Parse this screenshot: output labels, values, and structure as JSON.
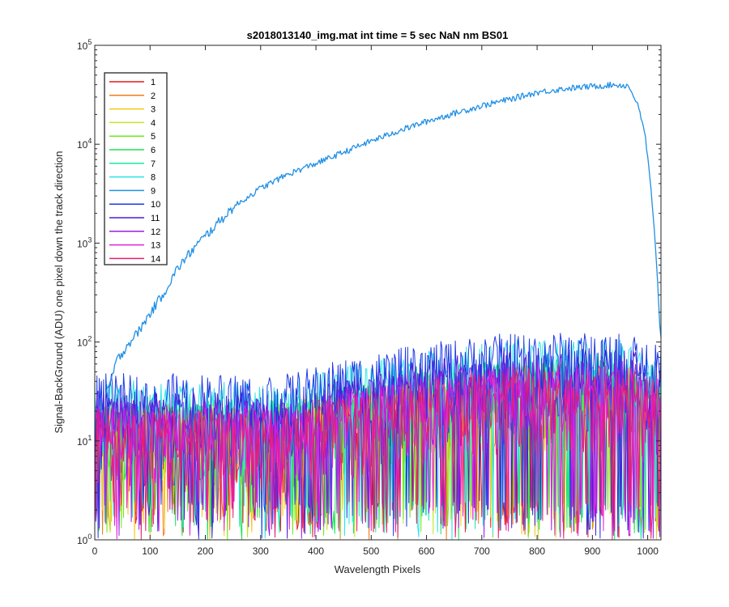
{
  "chart_data": {
    "type": "line",
    "title": "s2018013140_img.mat int time = 5 sec  NaN nm BS01",
    "xlabel": "Wavelength Pixels",
    "ylabel": "Signal-BackGround (ADU) one pixel down the track direction",
    "xlim": [
      0,
      1024
    ],
    "ylim": [
      1,
      100000
    ],
    "yscale": "log",
    "grid": false,
    "legend_position": "top-left",
    "x_ticks": [
      "0",
      "100",
      "200",
      "300",
      "400",
      "500",
      "600",
      "700",
      "800",
      "900",
      "1000"
    ],
    "y_tick_exponents": [
      "0",
      "1",
      "2",
      "3",
      "4",
      "5"
    ],
    "series": [
      {
        "name": "1",
        "color": "#e6191b",
        "level": 12
      },
      {
        "name": "2",
        "color": "#f57a1a",
        "level": 12
      },
      {
        "name": "3",
        "color": "#f5c814",
        "level": 12
      },
      {
        "name": "4",
        "color": "#c3e627",
        "level": 13
      },
      {
        "name": "5",
        "color": "#6bea1b",
        "level": 13
      },
      {
        "name": "6",
        "color": "#1fe35a",
        "level": 14
      },
      {
        "name": "7",
        "color": "#19e8a6",
        "level": 16
      },
      {
        "name": "8",
        "color": "#2be6e6",
        "level": 22
      },
      {
        "name": "9",
        "color": "#1f8fe6",
        "level": 0,
        "profile_x": [
          20,
          40,
          60,
          80,
          100,
          130,
          150,
          180,
          200,
          250,
          300,
          350,
          400,
          450,
          500,
          550,
          600,
          650,
          700,
          750,
          800,
          850,
          900,
          940,
          965,
          980,
          995,
          1005,
          1012,
          1018,
          1022,
          1024
        ],
        "profile_y": [
          28,
          65,
          95,
          130,
          195,
          350,
          560,
          900,
          1180,
          2300,
          3600,
          5000,
          6400,
          8300,
          10800,
          13700,
          17000,
          20500,
          24500,
          28500,
          33500,
          36500,
          38500,
          40000,
          39000,
          27000,
          13000,
          4000,
          1300,
          400,
          150,
          110
        ]
      },
      {
        "name": "10",
        "color": "#1f3ae6",
        "level": 26
      },
      {
        "name": "11",
        "color": "#4a1fd6",
        "level": 18
      },
      {
        "name": "12",
        "color": "#9a1fe6",
        "level": 14
      },
      {
        "name": "13",
        "color": "#e61fdc",
        "level": 12
      },
      {
        "name": "14",
        "color": "#e61f6e",
        "level": 11
      }
    ]
  }
}
